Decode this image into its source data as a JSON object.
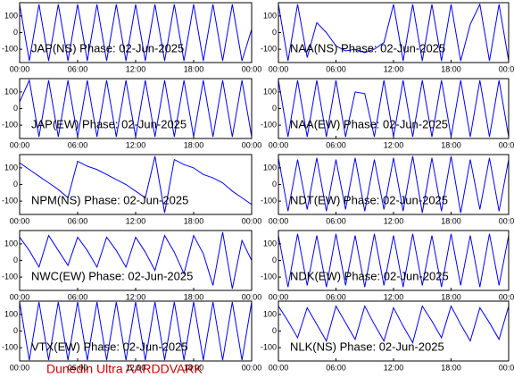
{
  "footer": "Dunedin Ultra AARDDVARK",
  "chart_data": [
    {
      "type": "line",
      "title": "JAP(NS) Phase: 02-Jun-2025",
      "color": "#0000ff",
      "x": [
        0,
        1,
        2,
        3,
        4,
        5,
        6,
        7,
        8,
        9,
        10,
        11,
        12,
        13,
        14,
        15,
        16,
        17,
        18,
        19,
        20,
        21,
        22,
        23,
        24
      ],
      "values": [
        170,
        -170,
        170,
        -170,
        170,
        -170,
        170,
        -170,
        170,
        -170,
        170,
        -170,
        170,
        -170,
        170,
        -170,
        170,
        -170,
        170,
        -170,
        170,
        -170,
        170,
        -170,
        20
      ],
      "xlim": [
        0,
        24
      ],
      "xticks": [
        {
          "value": 0,
          "label": "00:00"
        },
        {
          "value": 6,
          "label": "06:00"
        },
        {
          "value": 12,
          "label": "12:00"
        },
        {
          "value": 18,
          "label": "18:00"
        },
        {
          "value": 24,
          "label": "00:00"
        }
      ],
      "ylim": [
        -180,
        180
      ],
      "yticks": [
        -100,
        0,
        100
      ]
    },
    {
      "type": "line",
      "title": "NAA(NS) Phase: 02-Jun-2025",
      "color": "#0000ff",
      "x": [
        0,
        1,
        2,
        3,
        4,
        5,
        6,
        7,
        8,
        9,
        10,
        11,
        12,
        13,
        14,
        15,
        16,
        17,
        18,
        19,
        20,
        21,
        22,
        23,
        24
      ],
      "values": [
        170,
        -170,
        170,
        -150,
        60,
        0,
        -80,
        -110,
        -100,
        -120,
        -100,
        -60,
        170,
        -170,
        170,
        -170,
        170,
        -170,
        170,
        -170,
        50,
        170,
        -170,
        170,
        -170
      ],
      "xlim": [
        0,
        24
      ],
      "xticks": [
        {
          "value": 0,
          "label": "00:00"
        },
        {
          "value": 6,
          "label": "06:00"
        },
        {
          "value": 12,
          "label": "12:00"
        },
        {
          "value": 18,
          "label": "18:00"
        },
        {
          "value": 24,
          "label": "00:00"
        }
      ],
      "ylim": [
        -180,
        180
      ],
      "yticks": [
        -100,
        0,
        100
      ]
    },
    {
      "type": "line",
      "title": "JAP(EW) Phase: 02-Jun-2025",
      "color": "#0000ff",
      "x": [
        0,
        1,
        2,
        3,
        4,
        5,
        6,
        7,
        8,
        9,
        10,
        11,
        12,
        13,
        14,
        15,
        16,
        17,
        18,
        19,
        20,
        21,
        22,
        23,
        24
      ],
      "values": [
        40,
        170,
        -170,
        170,
        -170,
        170,
        -170,
        170,
        -170,
        170,
        -170,
        170,
        -170,
        170,
        -170,
        170,
        -170,
        170,
        -170,
        170,
        -170,
        170,
        -170,
        170,
        -170
      ],
      "xlim": [
        0,
        24
      ],
      "xticks": [
        {
          "value": 0,
          "label": "00:00"
        },
        {
          "value": 6,
          "label": "06:00"
        },
        {
          "value": 12,
          "label": "12:00"
        },
        {
          "value": 18,
          "label": "18:00"
        },
        {
          "value": 24,
          "label": "00:00"
        }
      ],
      "ylim": [
        -180,
        180
      ],
      "yticks": [
        -100,
        0,
        100
      ]
    },
    {
      "type": "line",
      "title": "NAA(EW) Phase: 02-Jun-2025",
      "color": "#0000ff",
      "x": [
        0,
        1,
        2,
        3,
        4,
        5,
        6,
        7,
        8,
        9,
        10,
        11,
        12,
        13,
        14,
        15,
        16,
        17,
        18,
        19,
        20,
        21,
        22,
        23,
        24
      ],
      "values": [
        170,
        -170,
        170,
        -170,
        170,
        -170,
        170,
        -170,
        100,
        90,
        -170,
        170,
        -170,
        170,
        -170,
        170,
        -170,
        170,
        -170,
        170,
        -170,
        170,
        -170,
        170,
        -170
      ],
      "xlim": [
        0,
        24
      ],
      "xticks": [
        {
          "value": 0,
          "label": "00:00"
        },
        {
          "value": 6,
          "label": "06:00"
        },
        {
          "value": 12,
          "label": "12:00"
        },
        {
          "value": 18,
          "label": "18:00"
        },
        {
          "value": 24,
          "label": "00:00"
        }
      ],
      "ylim": [
        -180,
        180
      ],
      "yticks": [
        -100,
        0,
        100
      ]
    },
    {
      "type": "line",
      "title": "NPM(NS) Phase: 02-Jun-2025",
      "color": "#0000ff",
      "x": [
        0,
        1,
        2,
        3,
        4,
        5,
        6,
        7,
        8,
        9,
        10,
        11,
        12,
        13,
        14,
        15,
        16,
        17,
        18,
        19,
        20,
        21,
        22,
        23,
        24
      ],
      "values": [
        130,
        90,
        50,
        10,
        -30,
        -80,
        140,
        110,
        90,
        60,
        30,
        0,
        -40,
        -80,
        170,
        -170,
        150,
        120,
        100,
        60,
        40,
        10,
        -40,
        -80,
        -120
      ],
      "xlim": [
        0,
        24
      ],
      "xticks": [
        {
          "value": 0,
          "label": "00:00"
        },
        {
          "value": 6,
          "label": "06:00"
        },
        {
          "value": 12,
          "label": "12:00"
        },
        {
          "value": 18,
          "label": "18:00"
        },
        {
          "value": 24,
          "label": "00:00"
        }
      ],
      "ylim": [
        -180,
        180
      ],
      "yticks": [
        -100,
        0,
        100
      ]
    },
    {
      "type": "line",
      "title": "NDT(EW) Phase: 02-Jun-2025",
      "color": "#0000ff",
      "x": [
        0,
        1,
        2,
        3,
        4,
        5,
        6,
        7,
        8,
        9,
        10,
        11,
        12,
        13,
        14,
        15,
        16,
        17,
        18,
        19,
        20,
        21,
        22,
        23,
        24
      ],
      "values": [
        160,
        -160,
        150,
        -150,
        160,
        -160,
        150,
        -150,
        160,
        -160,
        150,
        -150,
        160,
        -160,
        170,
        -170,
        160,
        -160,
        170,
        -170,
        150,
        -150,
        160,
        -160,
        150
      ],
      "xlim": [
        0,
        24
      ],
      "xticks": [
        {
          "value": 0,
          "label": "00:00"
        },
        {
          "value": 6,
          "label": "06:00"
        },
        {
          "value": 12,
          "label": "12:00"
        },
        {
          "value": 18,
          "label": "18:00"
        },
        {
          "value": 24,
          "label": "00:00"
        }
      ],
      "ylim": [
        -180,
        180
      ],
      "yticks": [
        -100,
        0,
        100
      ]
    },
    {
      "type": "line",
      "title": "NWC(EW) Phase: 02-Jun-2025",
      "color": "#0000ff",
      "x": [
        0,
        1,
        2,
        3,
        4,
        5,
        6,
        7,
        8,
        9,
        10,
        11,
        12,
        13,
        14,
        15,
        16,
        17,
        18,
        19,
        20,
        21,
        22,
        23,
        24
      ],
      "values": [
        140,
        60,
        -40,
        150,
        60,
        -30,
        140,
        60,
        -40,
        140,
        60,
        -40,
        140,
        50,
        -60,
        150,
        50,
        -80,
        150,
        40,
        -150,
        170,
        -170,
        120,
        0
      ],
      "xlim": [
        0,
        24
      ],
      "xticks": [
        {
          "value": 0,
          "label": "00:00"
        },
        {
          "value": 6,
          "label": "06:00"
        },
        {
          "value": 12,
          "label": "12:00"
        },
        {
          "value": 18,
          "label": "18:00"
        },
        {
          "value": 24,
          "label": "00:00"
        }
      ],
      "ylim": [
        -180,
        180
      ],
      "yticks": [
        -100,
        0,
        100
      ]
    },
    {
      "type": "line",
      "title": "NDK(EW) Phase: 02-Jun-2025",
      "color": "#0000ff",
      "x": [
        0,
        1,
        2,
        3,
        4,
        5,
        6,
        7,
        8,
        9,
        10,
        11,
        12,
        13,
        14,
        15,
        16,
        17,
        18,
        19,
        20,
        21,
        22,
        23,
        24
      ],
      "values": [
        150,
        -160,
        160,
        -150,
        150,
        -160,
        160,
        -150,
        150,
        -160,
        160,
        -150,
        150,
        -160,
        160,
        -150,
        150,
        -160,
        160,
        -150,
        150,
        -160,
        160,
        -150,
        150
      ],
      "xlim": [
        0,
        24
      ],
      "xticks": [
        {
          "value": 0,
          "label": "00:00"
        },
        {
          "value": 6,
          "label": "06:00"
        },
        {
          "value": 12,
          "label": "12:00"
        },
        {
          "value": 18,
          "label": "18:00"
        },
        {
          "value": 24,
          "label": "00:00"
        }
      ],
      "ylim": [
        -180,
        180
      ],
      "yticks": [
        -100,
        0,
        100
      ]
    },
    {
      "type": "line",
      "title": "VTX(EW) Phase: 02-Jun-2025",
      "color": "#0000ff",
      "x": [
        0,
        1,
        2,
        3,
        4,
        5,
        6,
        7,
        8,
        9,
        10,
        11,
        12,
        13,
        14,
        15,
        16,
        17,
        18,
        19,
        20,
        21,
        22,
        23,
        24
      ],
      "values": [
        175,
        -175,
        175,
        -175,
        175,
        -175,
        175,
        -175,
        175,
        -175,
        175,
        -175,
        175,
        -175,
        175,
        -175,
        175,
        -175,
        175,
        -175,
        175,
        -175,
        175,
        -175,
        175
      ],
      "xlim": [
        0,
        24
      ],
      "xticks": [
        {
          "value": 0,
          "label": "00:00"
        },
        {
          "value": 6,
          "label": "06:00"
        },
        {
          "value": 12,
          "label": "12:00"
        },
        {
          "value": 18,
          "label": "18:00"
        },
        {
          "value": 24,
          "label": "00:00"
        }
      ],
      "ylim": [
        -180,
        180
      ],
      "yticks": [
        -100,
        0,
        100
      ]
    },
    {
      "type": "line",
      "title": "NLK(NS) Phase: 02-Jun-2025",
      "color": "#0000ff",
      "x": [
        0,
        1,
        2,
        3,
        4,
        5,
        6,
        7,
        8,
        9,
        10,
        11,
        12,
        13,
        14,
        15,
        16,
        17,
        18,
        19,
        20,
        21,
        22,
        23,
        24
      ],
      "values": [
        150,
        60,
        -40,
        140,
        40,
        -60,
        150,
        50,
        -50,
        150,
        40,
        -60,
        140,
        30,
        -70,
        150,
        60,
        -40,
        150,
        40,
        -60,
        140,
        50,
        -50,
        150
      ],
      "xlim": [
        0,
        24
      ],
      "xticks": [
        {
          "value": 0,
          "label": "00:00"
        },
        {
          "value": 6,
          "label": "06:00"
        },
        {
          "value": 12,
          "label": "12:00"
        },
        {
          "value": 18,
          "label": "18:00"
        },
        {
          "value": 24,
          "label": "00:00"
        }
      ],
      "ylim": [
        -180,
        180
      ],
      "yticks": [
        -100,
        0,
        100
      ]
    }
  ]
}
